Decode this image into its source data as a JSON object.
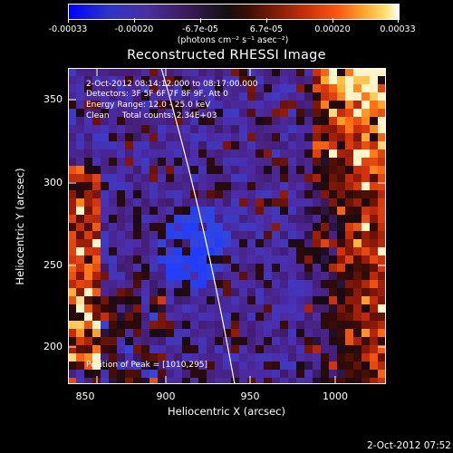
{
  "colorbar": {
    "tick_labels": [
      "-0.00033",
      "-0.00020",
      "-6.7e-05",
      "6.7e-05",
      "0.00020",
      "0.00033"
    ],
    "units": "(photons cm⁻² s⁻¹ asec⁻²)"
  },
  "plot": {
    "title": "Reconstructed RHESSI Image",
    "xlabel": "Heliocentric X (arcsec)",
    "ylabel": "Heliocentric Y (arcsec)",
    "x_ticks": [
      "850",
      "900",
      "950",
      "1000"
    ],
    "y_ticks": [
      "350",
      "300",
      "250",
      "200"
    ],
    "info_lines": [
      "2-Oct-2012 08:14:12.000 to 08:17:00.000",
      "Detectors: 3F 5F 6F 7F 8F 9F, Att 0",
      "Energy Range: 12.0 - 25.0 keV",
      "Clean     Total counts: 2.34E+03"
    ],
    "peak_label": "Position of Peak = [1010,295]"
  },
  "footer": {
    "timestamp": "2-Oct-2012 07:52"
  }
}
